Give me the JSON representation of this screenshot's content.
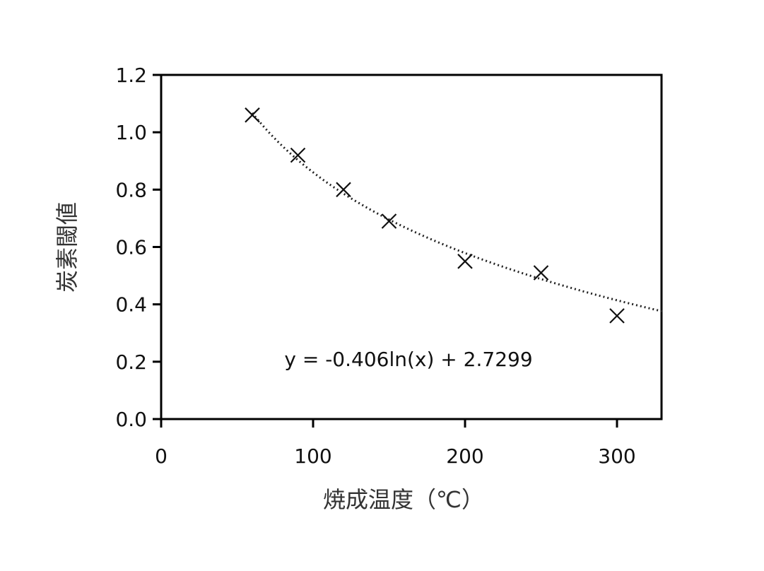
{
  "chart_data": {
    "type": "scatter",
    "xlabel": "焼成温度（℃）",
    "ylabel": "炭素閾値",
    "xlim": [
      0,
      330
    ],
    "ylim": [
      0,
      1.2
    ],
    "x_ticks": [
      "0",
      "100",
      "200",
      "300"
    ],
    "y_ticks": [
      "0.0",
      "0.2",
      "0.4",
      "0.6",
      "0.8",
      "1.0",
      "1.2"
    ],
    "grid": false,
    "legend": "none",
    "series": [
      {
        "marker": "x",
        "x": [
          60,
          90,
          120,
          150,
          200,
          250,
          300
        ],
        "y": [
          1.06,
          0.92,
          0.8,
          0.69,
          0.55,
          0.51,
          0.36
        ]
      }
    ],
    "trendline": {
      "type": "logarithmic",
      "a": -0.406,
      "b": 2.7299,
      "x_range": [
        60,
        330
      ],
      "style": "dotted",
      "equation_label": "y = -0.406ln(x) + 2.7299"
    }
  }
}
